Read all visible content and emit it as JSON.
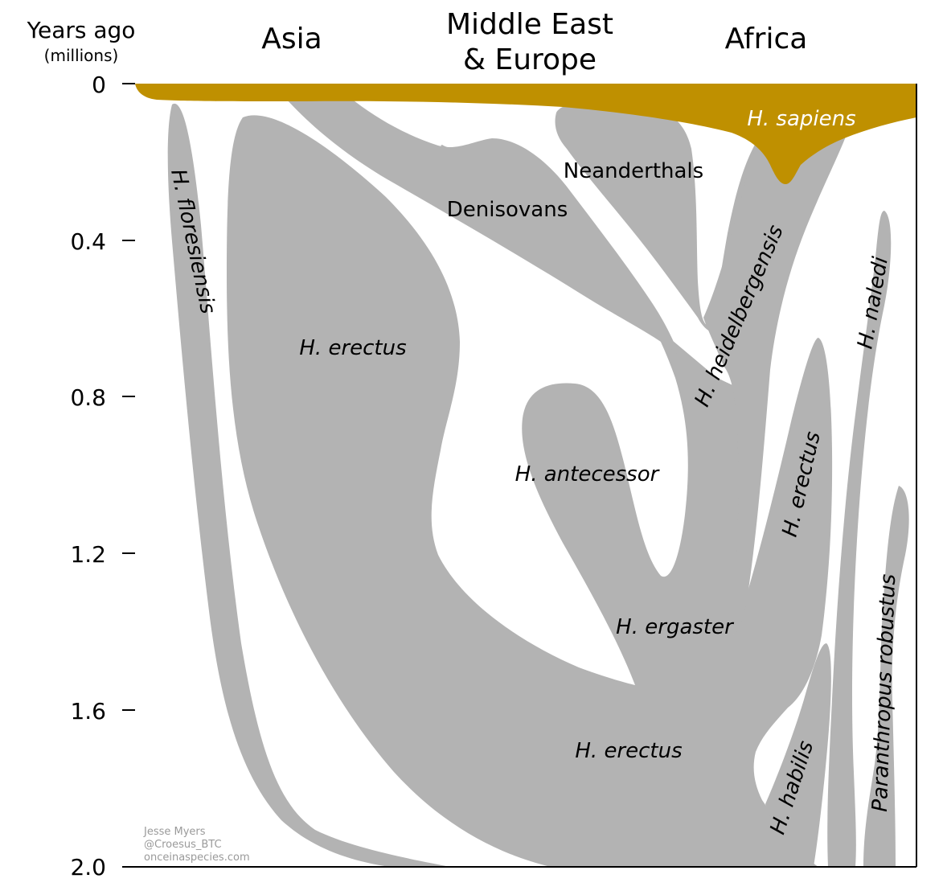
{
  "header": {
    "axis_title": "Years ago",
    "axis_unit": "(millions)",
    "regions": [
      "Asia",
      "Middle East",
      "& Europe",
      "Africa"
    ]
  },
  "y_axis": {
    "ticks": [
      "0",
      "0.4",
      "0.8",
      "1.2",
      "1.6",
      "2.0"
    ]
  },
  "species": {
    "sapiens": "H. sapiens",
    "neanderthals": "Neanderthals",
    "denisovans": "Denisovans",
    "floresiensis": "H. floresiensis",
    "erectus_asia": "H. erectus",
    "heidelbergensis": "H. heidelbergensis",
    "naledi": "H. naledi",
    "antecessor": "H. antecessor",
    "erectus_africa": "H. erectus",
    "ergaster": "H. ergaster",
    "erectus_base": "H. erectus",
    "habilis": "H. habilis",
    "paranthropus": "Paranthropus robustus"
  },
  "credits": {
    "author": "Jesse Myers",
    "handle": "@Croesus_BTC",
    "site": "onceinaspecies.com"
  },
  "colors": {
    "species_fill": "#b3b3b3",
    "sapiens_fill": "#bf9000",
    "sapiens_label": "#ffffff",
    "axis": "#000000"
  }
}
